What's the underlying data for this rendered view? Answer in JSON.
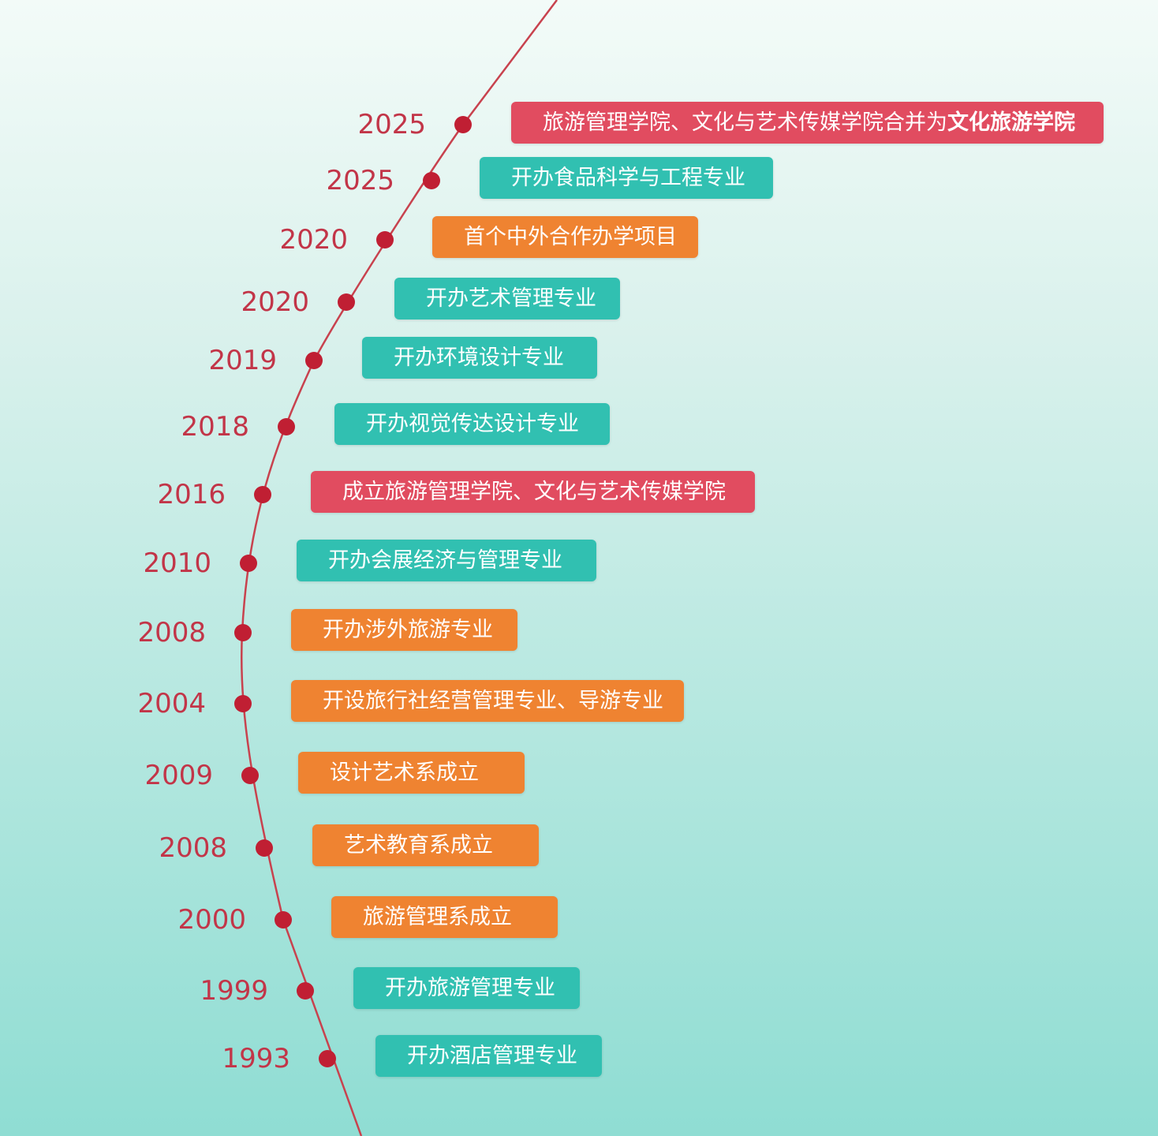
{
  "colors": {
    "line": "#c8424e",
    "dot": "#c01f33",
    "year_text": "#c23548",
    "teal": "#31c0b1",
    "orange": "#ef8331",
    "red": "#e14c60"
  },
  "events": [
    {
      "year": "2025",
      "text": "旅游管理学院、文化与艺术传媒学院合并为",
      "bold": "文化旅游学院",
      "color": "red"
    },
    {
      "year": "2025",
      "text": "开办食品科学与工程专业",
      "color": "teal"
    },
    {
      "year": "2020",
      "text": "首个中外合作办学项目",
      "color": "orange"
    },
    {
      "year": "2020",
      "text": "开办艺术管理专业",
      "color": "teal"
    },
    {
      "year": "2019",
      "text": "开办环境设计专业",
      "color": "teal"
    },
    {
      "year": "2018",
      "text": "开办视觉传达设计专业",
      "color": "teal"
    },
    {
      "year": "2016",
      "text": "成立旅游管理学院、文化与艺术传媒学院",
      "color": "red"
    },
    {
      "year": "2010",
      "text": "开办会展经济与管理专业",
      "color": "teal"
    },
    {
      "year": "2008",
      "text": "开办涉外旅游专业",
      "color": "orange"
    },
    {
      "year": "2004",
      "text": "开设旅行社经营管理专业、导游专业",
      "color": "orange"
    },
    {
      "year": "2009",
      "text": "设计艺术系成立",
      "color": "orange"
    },
    {
      "year": "2008",
      "text": "艺术教育系成立",
      "color": "orange"
    },
    {
      "year": "2000",
      "text": "旅游管理系成立",
      "color": "orange"
    },
    {
      "year": "1999",
      "text": "开办旅游管理专业",
      "color": "teal"
    },
    {
      "year": "1993",
      "text": "开办酒店管理专业",
      "color": "teal"
    }
  ]
}
